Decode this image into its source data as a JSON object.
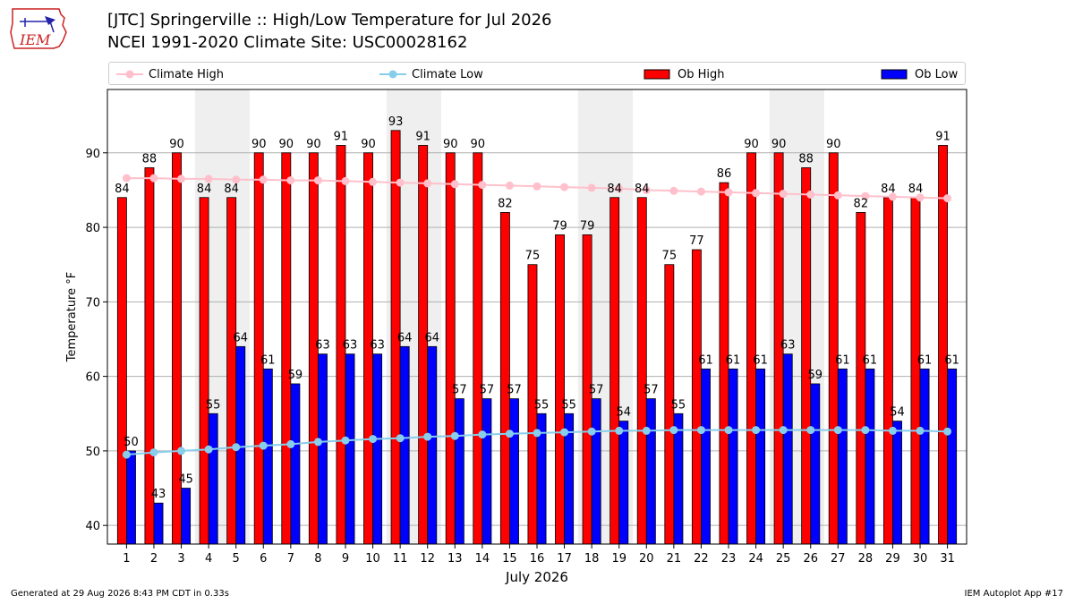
{
  "title": "[JTC] Springerville :: High/Low Temperature for Jul 2026",
  "subtitle": "NCEI 1991-2020 Climate Site: USC00028162",
  "footer_left": "Generated at 29 Aug 2026 8:43 PM CDT in 0.33s",
  "footer_right": "IEM Autoplot App #17",
  "logo_text": "IEM",
  "chart_data": {
    "type": "bar",
    "xlabel": "July 2026",
    "ylabel": "Temperature °F",
    "ylim": [
      37.5,
      98.5
    ],
    "yticks": [
      40,
      50,
      60,
      70,
      80,
      90
    ],
    "grid": "horizontal",
    "legend_placement": "top",
    "weekend_shading": [
      4,
      5,
      11,
      12,
      18,
      19,
      25,
      26
    ],
    "categories": [
      "1",
      "2",
      "3",
      "4",
      "5",
      "6",
      "7",
      "8",
      "9",
      "10",
      "11",
      "12",
      "13",
      "14",
      "15",
      "16",
      "17",
      "18",
      "19",
      "20",
      "21",
      "22",
      "23",
      "24",
      "25",
      "26",
      "27",
      "28",
      "29",
      "30",
      "31"
    ],
    "series": [
      {
        "name": "Ob High",
        "color": "#ff0000",
        "values": [
          84,
          88,
          90,
          84,
          84,
          90,
          90,
          90,
          91,
          90,
          93,
          91,
          90,
          90,
          82,
          75,
          79,
          79,
          84,
          84,
          75,
          77,
          86,
          90,
          90,
          88,
          90,
          82,
          84,
          84,
          91
        ]
      },
      {
        "name": "Ob Low",
        "color": "#0000ff",
        "values": [
          50,
          43,
          45,
          55,
          64,
          61,
          59,
          63,
          63,
          63,
          64,
          64,
          57,
          57,
          57,
          55,
          55,
          57,
          54,
          57,
          55,
          61,
          61,
          61,
          63,
          59,
          61,
          61,
          54,
          61,
          61
        ]
      },
      {
        "name": "Climate High",
        "color": "#ffc0cb",
        "values": [
          86.6,
          86.6,
          86.5,
          86.5,
          86.4,
          86.4,
          86.3,
          86.3,
          86.2,
          86.1,
          86.0,
          85.9,
          85.8,
          85.7,
          85.6,
          85.5,
          85.4,
          85.3,
          85.2,
          85.0,
          84.9,
          84.8,
          84.7,
          84.6,
          84.5,
          84.4,
          84.3,
          84.2,
          84.1,
          84.0,
          83.9
        ]
      },
      {
        "name": "Climate Low",
        "color": "#87ceeb",
        "values": [
          49.5,
          49.8,
          50.0,
          50.2,
          50.5,
          50.7,
          50.9,
          51.2,
          51.4,
          51.6,
          51.7,
          51.9,
          52.0,
          52.2,
          52.3,
          52.4,
          52.5,
          52.6,
          52.7,
          52.7,
          52.8,
          52.8,
          52.8,
          52.8,
          52.8,
          52.8,
          52.8,
          52.8,
          52.7,
          52.7,
          52.6
        ]
      }
    ]
  }
}
